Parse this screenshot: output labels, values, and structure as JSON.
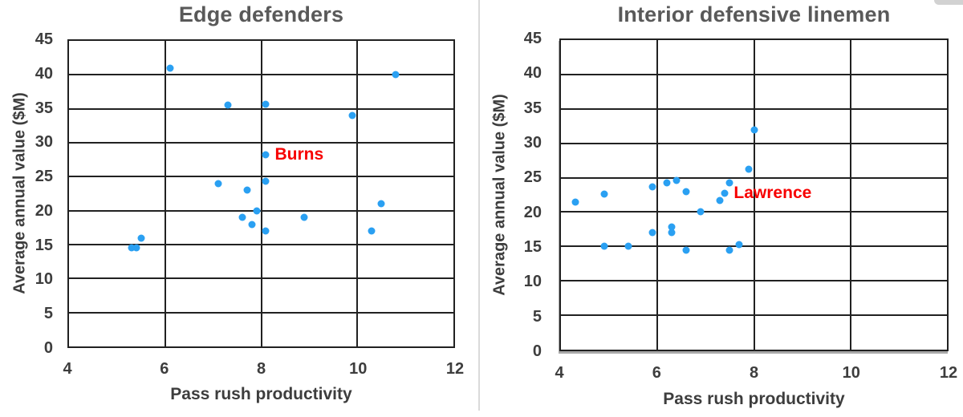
{
  "colors": {
    "point": "#2aa0f2",
    "annotation": "#f70000",
    "title": "#595959",
    "axis_text": "#3d3d3d",
    "grid": "#212121",
    "divider": "#dadada",
    "background": "#ffffff"
  },
  "chart_data": [
    {
      "type": "scatter",
      "title": "Edge defenders",
      "xlabel": "Pass rush productivity",
      "ylabel": "Average annual value ($M)",
      "xlim": [
        4,
        12
      ],
      "ylim": [
        0,
        45
      ],
      "xticks": [
        4,
        6,
        8,
        10,
        12
      ],
      "yticks": [
        45,
        40,
        35,
        30,
        25,
        20,
        15,
        10,
        5,
        0
      ],
      "grid": true,
      "points": [
        [
          5.3,
          14.5
        ],
        [
          5.4,
          14.5
        ],
        [
          5.5,
          16
        ],
        [
          6.1,
          41
        ],
        [
          7.1,
          24
        ],
        [
          7.3,
          35.5
        ],
        [
          7.6,
          19
        ],
        [
          7.7,
          23
        ],
        [
          7.8,
          18
        ],
        [
          7.9,
          20
        ],
        [
          8.1,
          35.7
        ],
        [
          8.1,
          28.2
        ],
        [
          8.1,
          24.3
        ],
        [
          8.1,
          17
        ],
        [
          8.9,
          19
        ],
        [
          9.9,
          34
        ],
        [
          10.3,
          17
        ],
        [
          10.5,
          21
        ],
        [
          10.8,
          40
        ]
      ],
      "annotations": [
        {
          "text": "Burns",
          "x": 8.1,
          "y": 28.2
        }
      ]
    },
    {
      "type": "scatter",
      "title": "Interior defensive linemen",
      "xlabel": "Pass rush productivity",
      "ylabel": "Average annual value ($M)",
      "xlim": [
        4,
        12
      ],
      "ylim": [
        0,
        45
      ],
      "xticks": [
        4,
        6,
        8,
        10,
        12
      ],
      "yticks": [
        45,
        40,
        35,
        30,
        25,
        20,
        15,
        10,
        5,
        0
      ],
      "grid": true,
      "points": [
        [
          4.3,
          21.4
        ],
        [
          4.9,
          22.6
        ],
        [
          4.9,
          15
        ],
        [
          5.4,
          15
        ],
        [
          5.9,
          23.7
        ],
        [
          5.9,
          17
        ],
        [
          6.2,
          24.3
        ],
        [
          6.3,
          17.8
        ],
        [
          6.3,
          17
        ],
        [
          6.4,
          24.6
        ],
        [
          6.6,
          23
        ],
        [
          6.6,
          14.5
        ],
        [
          6.9,
          20.1
        ],
        [
          7.3,
          21.7
        ],
        [
          7.4,
          22.7
        ],
        [
          7.5,
          24.2
        ],
        [
          7.5,
          14.5
        ],
        [
          7.7,
          15.3
        ],
        [
          7.9,
          26.2
        ],
        [
          8.0,
          31.9
        ]
      ],
      "annotations": [
        {
          "text": "Lawrence",
          "x": 7.4,
          "y": 22.7
        }
      ]
    }
  ]
}
